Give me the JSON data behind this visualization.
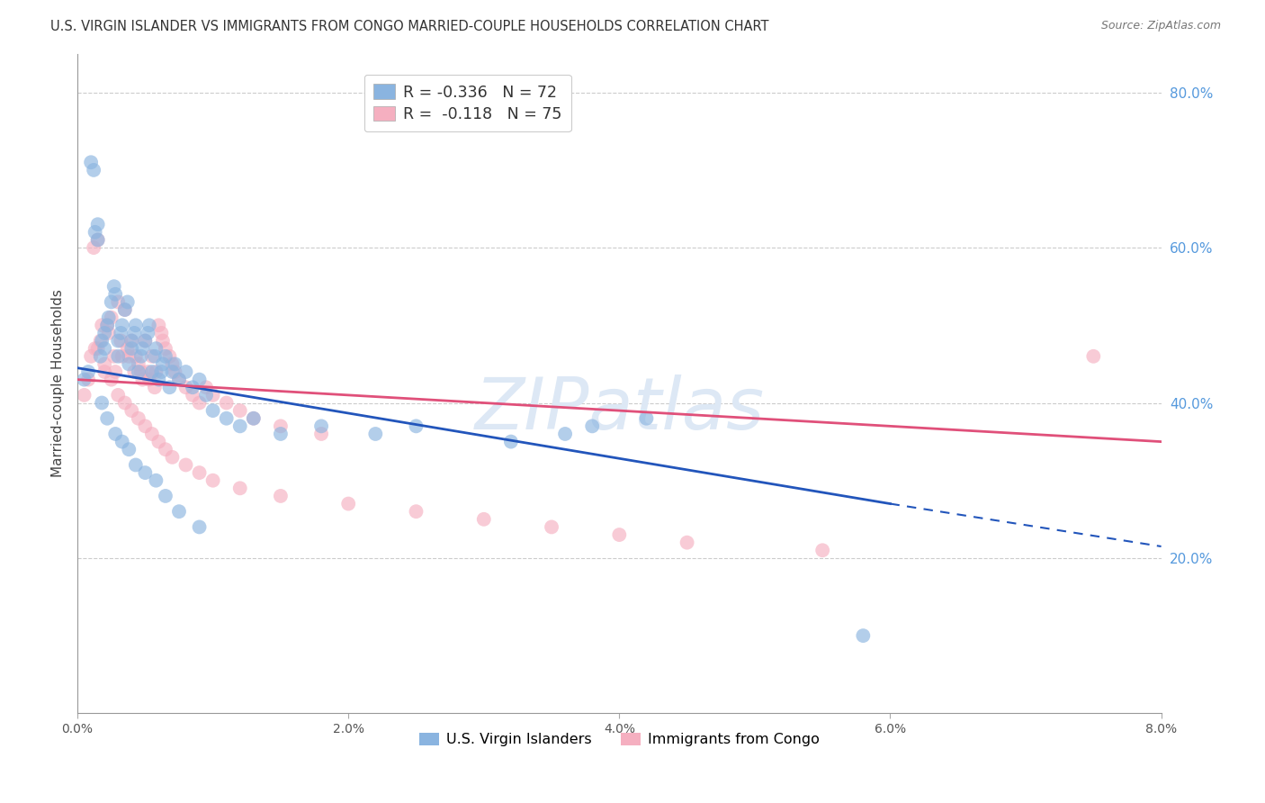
{
  "title": "U.S. VIRGIN ISLANDER VS IMMIGRANTS FROM CONGO MARRIED-COUPLE HOUSEHOLDS CORRELATION CHART",
  "source": "Source: ZipAtlas.com",
  "ylabel": "Married-couple Households",
  "xmin": 0.0,
  "xmax": 8.0,
  "ymin": 0.0,
  "ymax": 85.0,
  "right_yticks": [
    20.0,
    40.0,
    60.0,
    80.0
  ],
  "grid_color": "#cccccc",
  "background_color": "#ffffff",
  "blue_color": "#8ab4e0",
  "blue_line_color": "#2255bb",
  "pink_color": "#f5afc0",
  "pink_line_color": "#e0507a",
  "blue_label": "U.S. Virgin Islanders",
  "pink_label": "Immigrants from Congo",
  "blue_R": -0.336,
  "blue_N": 72,
  "pink_R": -0.118,
  "pink_N": 75,
  "watermark": "ZIPatlas",
  "watermark_color": "#dde8f5",
  "blue_line_x0": 0.0,
  "blue_line_y0": 44.5,
  "blue_line_x1": 6.0,
  "blue_line_y1": 27.0,
  "blue_dash_x0": 6.0,
  "blue_dash_y0": 27.0,
  "blue_dash_x1": 8.0,
  "blue_dash_y1": 21.5,
  "pink_line_x0": 0.0,
  "pink_line_y0": 43.0,
  "pink_line_x1": 8.0,
  "pink_line_y1": 35.0,
  "blue_scatter_x": [
    0.05,
    0.08,
    0.1,
    0.12,
    0.13,
    0.15,
    0.15,
    0.17,
    0.18,
    0.2,
    0.2,
    0.22,
    0.23,
    0.25,
    0.27,
    0.28,
    0.3,
    0.3,
    0.32,
    0.33,
    0.35,
    0.37,
    0.38,
    0.4,
    0.4,
    0.42,
    0.43,
    0.45,
    0.47,
    0.48,
    0.5,
    0.52,
    0.53,
    0.55,
    0.57,
    0.58,
    0.6,
    0.62,
    0.63,
    0.65,
    0.68,
    0.7,
    0.72,
    0.75,
    0.8,
    0.85,
    0.9,
    0.95,
    1.0,
    1.1,
    1.2,
    1.3,
    1.5,
    1.8,
    2.2,
    2.5,
    3.2,
    3.6,
    3.8,
    4.2,
    0.18,
    0.22,
    0.28,
    0.33,
    0.38,
    0.43,
    0.5,
    0.58,
    0.65,
    0.75,
    0.9,
    5.8
  ],
  "blue_scatter_y": [
    43.0,
    44.0,
    71.0,
    70.0,
    62.0,
    61.0,
    63.0,
    46.0,
    48.0,
    47.0,
    49.0,
    50.0,
    51.0,
    53.0,
    55.0,
    54.0,
    46.0,
    48.0,
    49.0,
    50.0,
    52.0,
    53.0,
    45.0,
    47.0,
    48.0,
    49.0,
    50.0,
    44.0,
    46.0,
    47.0,
    48.0,
    49.0,
    50.0,
    44.0,
    46.0,
    47.0,
    43.0,
    44.0,
    45.0,
    46.0,
    42.0,
    44.0,
    45.0,
    43.0,
    44.0,
    42.0,
    43.0,
    41.0,
    39.0,
    38.0,
    37.0,
    38.0,
    36.0,
    37.0,
    36.0,
    37.0,
    35.0,
    36.0,
    37.0,
    38.0,
    40.0,
    38.0,
    36.0,
    35.0,
    34.0,
    32.0,
    31.0,
    30.0,
    28.0,
    26.0,
    24.0,
    10.0
  ],
  "pink_scatter_x": [
    0.05,
    0.08,
    0.1,
    0.12,
    0.13,
    0.15,
    0.17,
    0.18,
    0.2,
    0.22,
    0.23,
    0.25,
    0.27,
    0.28,
    0.3,
    0.32,
    0.33,
    0.35,
    0.37,
    0.38,
    0.4,
    0.42,
    0.43,
    0.45,
    0.47,
    0.48,
    0.5,
    0.52,
    0.53,
    0.55,
    0.57,
    0.58,
    0.6,
    0.62,
    0.63,
    0.65,
    0.68,
    0.7,
    0.72,
    0.75,
    0.8,
    0.85,
    0.9,
    0.95,
    1.0,
    1.1,
    1.2,
    1.3,
    1.5,
    1.8,
    0.15,
    0.2,
    0.25,
    0.3,
    0.35,
    0.4,
    0.45,
    0.5,
    0.55,
    0.6,
    0.65,
    0.7,
    0.8,
    0.9,
    1.0,
    1.2,
    1.5,
    2.0,
    2.5,
    3.0,
    3.5,
    4.0,
    4.5,
    5.5,
    7.5
  ],
  "pink_scatter_y": [
    41.0,
    43.0,
    46.0,
    60.0,
    47.0,
    61.0,
    48.0,
    50.0,
    44.0,
    50.0,
    49.0,
    51.0,
    46.0,
    44.0,
    53.0,
    48.0,
    46.0,
    52.0,
    47.0,
    46.0,
    48.0,
    44.0,
    46.0,
    45.0,
    44.0,
    43.0,
    48.0,
    44.0,
    43.0,
    46.0,
    42.0,
    44.0,
    50.0,
    49.0,
    48.0,
    47.0,
    46.0,
    45.0,
    44.0,
    43.0,
    42.0,
    41.0,
    40.0,
    42.0,
    41.0,
    40.0,
    39.0,
    38.0,
    37.0,
    36.0,
    47.0,
    45.0,
    43.0,
    41.0,
    40.0,
    39.0,
    38.0,
    37.0,
    36.0,
    35.0,
    34.0,
    33.0,
    32.0,
    31.0,
    30.0,
    29.0,
    28.0,
    27.0,
    26.0,
    25.0,
    24.0,
    23.0,
    22.0,
    21.0,
    46.0
  ]
}
